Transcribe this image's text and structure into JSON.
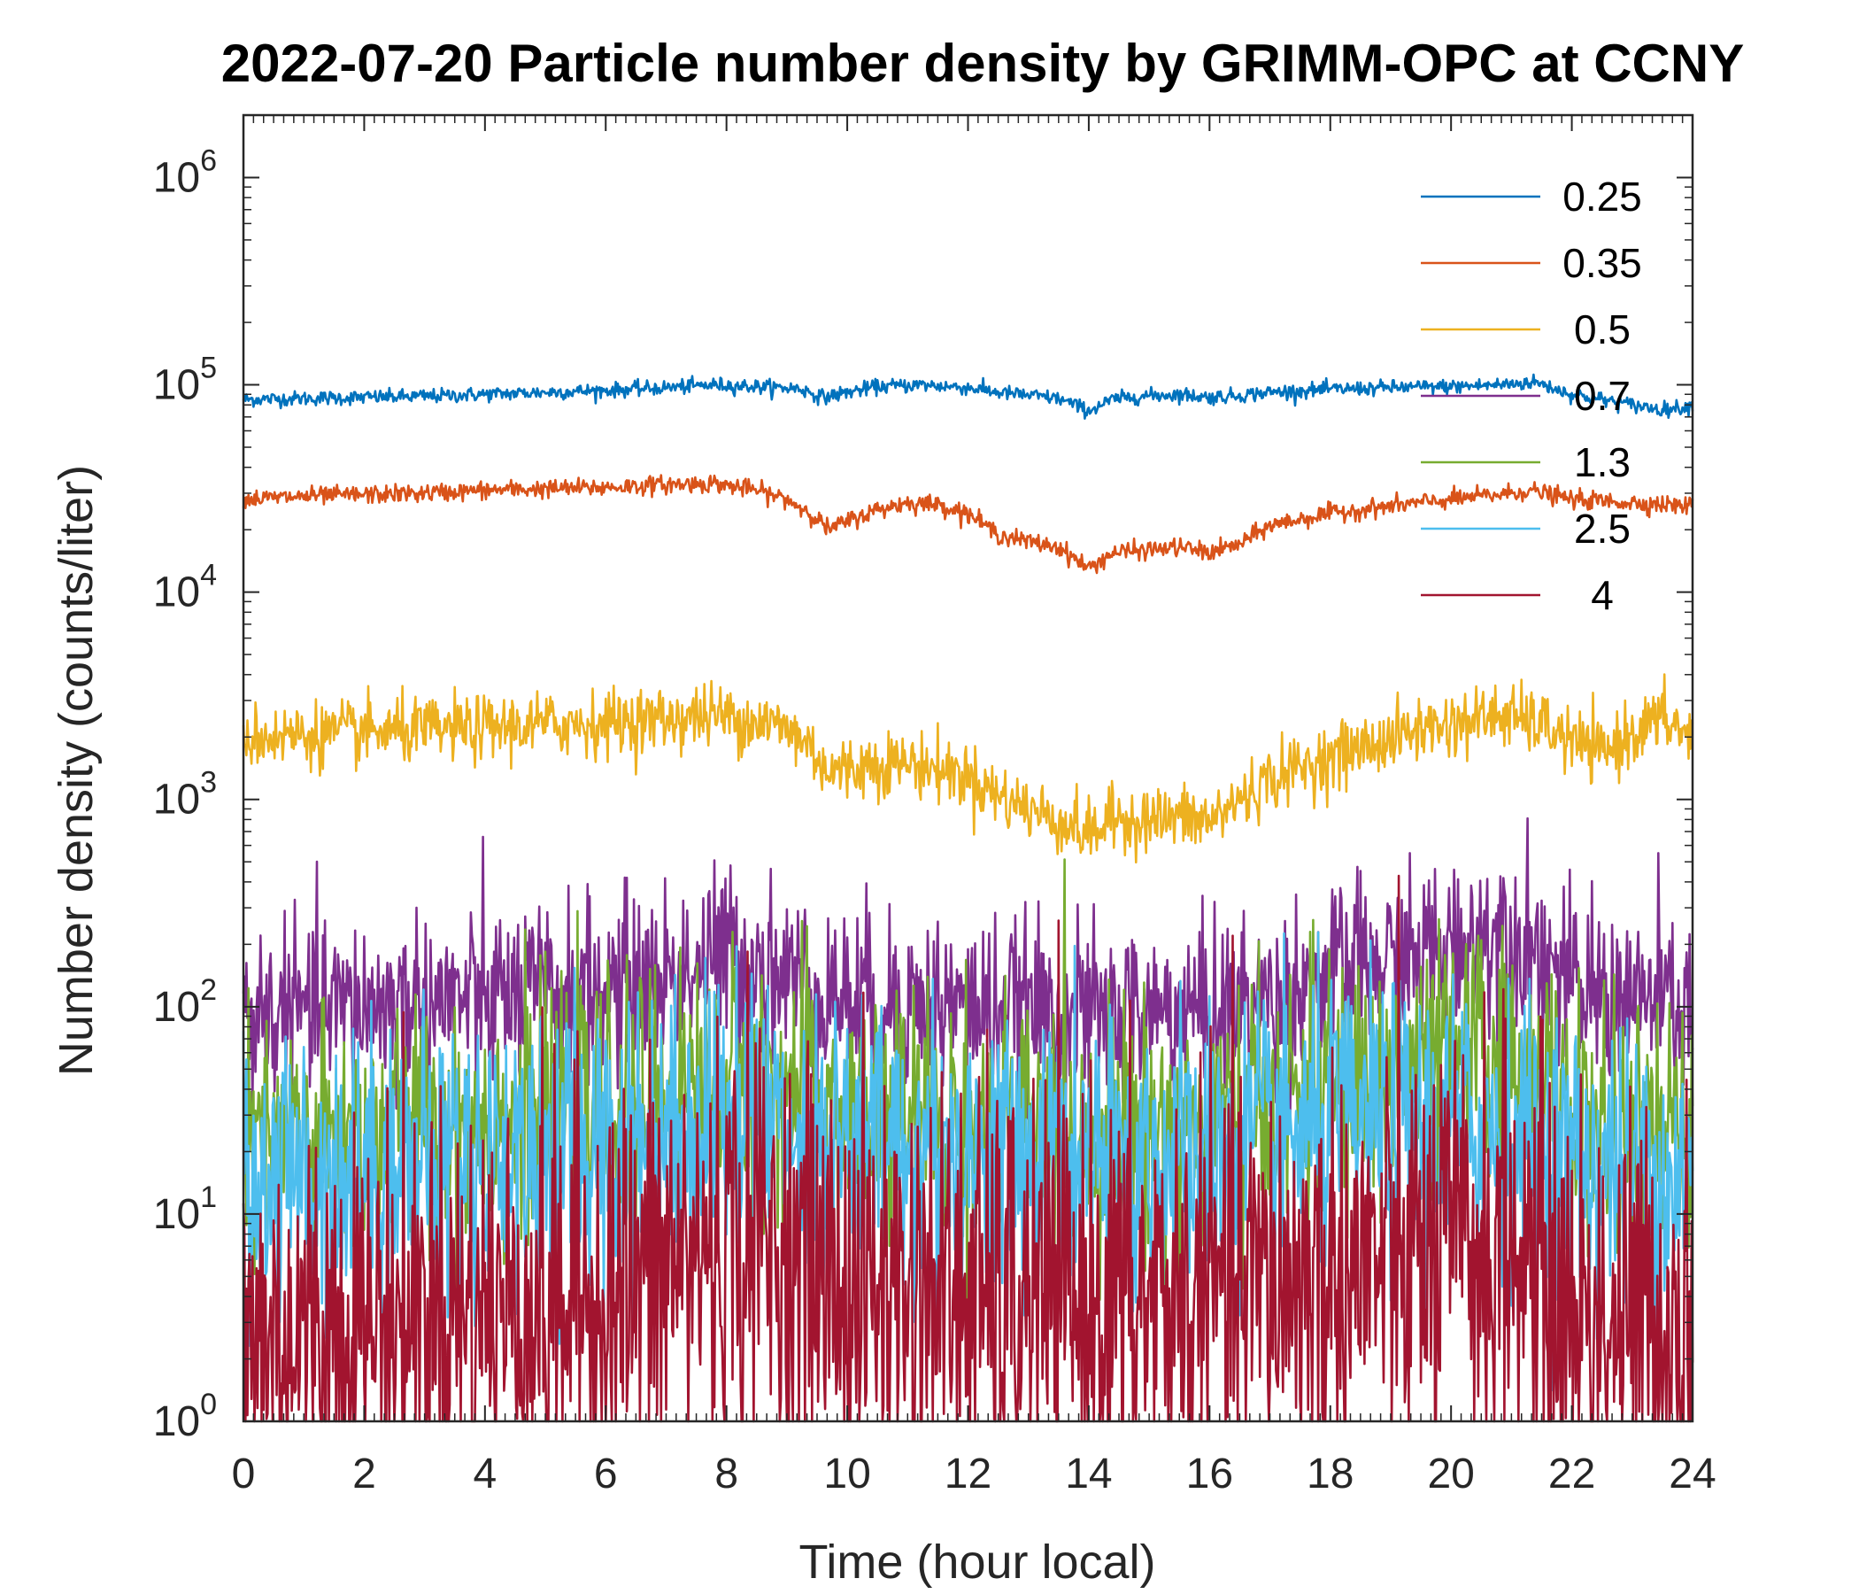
{
  "chart_data": {
    "type": "line",
    "title": "2022-07-20 Particle number density by GRIMM-OPC at CCNY",
    "xlabel": "Time (hour local)",
    "ylabel": "Number density (counts/liter)",
    "xlim": [
      0,
      24
    ],
    "ylim": [
      1,
      2000000
    ],
    "yscale": "log",
    "x_ticks": [
      "0",
      "2",
      "4",
      "6",
      "8",
      "10",
      "12",
      "14",
      "16",
      "18",
      "20",
      "22",
      "24"
    ],
    "y_ticks": [
      {
        "base": "10",
        "exp": "0",
        "value": 1
      },
      {
        "base": "10",
        "exp": "1",
        "value": 10
      },
      {
        "base": "10",
        "exp": "2",
        "value": 100
      },
      {
        "base": "10",
        "exp": "3",
        "value": 1000
      },
      {
        "base": "10",
        "exp": "4",
        "value": 10000
      },
      {
        "base": "10",
        "exp": "5",
        "value": 100000
      },
      {
        "base": "10",
        "exp": "6",
        "value": 1000000
      }
    ],
    "grid": false,
    "legend_position": "top-right",
    "series": [
      {
        "name": "0.25",
        "color": "#0072BD",
        "noise": 0.04,
        "x": [
          0,
          1,
          2,
          3,
          4,
          5,
          6,
          7,
          7.8,
          8.5,
          9.2,
          9.6,
          10.0,
          10.5,
          11.2,
          12.0,
          12.5,
          13.0,
          13.5,
          14.0,
          14.4,
          14.8,
          15.5,
          16.0,
          16.5,
          17.0,
          18.0,
          19.0,
          20.0,
          20.8,
          21.4,
          22.0,
          22.5,
          23.0,
          23.5,
          24.0
        ],
        "y": [
          85000,
          86000,
          87000,
          88000,
          90000,
          92000,
          94000,
          97000,
          100000,
          98000,
          96000,
          87000,
          92000,
          98000,
          100000,
          97000,
          92000,
          89000,
          86000,
          75000,
          85000,
          88000,
          90000,
          87000,
          89000,
          92000,
          95000,
          97000,
          98000,
          100000,
          103000,
          90000,
          85000,
          80000,
          76000,
          79000
        ]
      },
      {
        "name": "0.35",
        "color": "#D95319",
        "noise": 0.05,
        "x": [
          0,
          1,
          2,
          3,
          4,
          5,
          6,
          7,
          7.8,
          8.5,
          9.0,
          9.4,
          9.7,
          10.0,
          10.5,
          11.0,
          11.5,
          12.0,
          12.5,
          13.0,
          13.5,
          14.0,
          14.4,
          15.0,
          15.5,
          16.0,
          16.5,
          17.0,
          18.0,
          19.0,
          20.0,
          21.0,
          21.3,
          22.0,
          23.0,
          24.0
        ],
        "y": [
          28000,
          29000,
          29500,
          30000,
          31000,
          31500,
          32000,
          33000,
          33500,
          31000,
          28000,
          24000,
          20000,
          22000,
          25000,
          27000,
          26500,
          24000,
          19000,
          17500,
          16500,
          13000,
          15500,
          16000,
          16500,
          15500,
          17000,
          21000,
          24000,
          26000,
          28000,
          30000,
          31000,
          28000,
          27000,
          26000
        ]
      },
      {
        "name": "0.5",
        "color": "#EDB120",
        "noise": 0.18,
        "x": [
          0,
          1,
          2,
          3,
          4,
          5,
          6,
          7,
          7.8,
          8.5,
          9.0,
          9.4,
          9.7,
          10.0,
          10.5,
          11.0,
          11.5,
          12.0,
          12.5,
          13.0,
          13.5,
          14.0,
          14.5,
          15.0,
          15.5,
          16.0,
          16.5,
          17.0,
          18.0,
          19.0,
          19.5,
          20.0,
          20.8,
          21.5,
          22.0,
          22.5,
          23.0,
          23.5,
          24.0
        ],
        "y": [
          2000,
          2050,
          2100,
          2150,
          2200,
          2300,
          2350,
          2450,
          2550,
          2400,
          2200,
          1800,
          1350,
          1400,
          1500,
          1500,
          1400,
          1300,
          1050,
          900,
          800,
          680,
          820,
          800,
          820,
          780,
          1000,
          1250,
          1600,
          1950,
          2200,
          2300,
          2550,
          2300,
          1900,
          1650,
          2100,
          2450,
          2000
        ]
      },
      {
        "name": "0.7",
        "color": "#7E2F8E",
        "noise": 0.5,
        "x": [
          0,
          2,
          4,
          6,
          7,
          8,
          8.5,
          9,
          9.5,
          10,
          12,
          14,
          16,
          17,
          18,
          19,
          20,
          20.8,
          21.4,
          22,
          23,
          24
        ],
        "y": [
          90,
          100,
          110,
          120,
          140,
          180,
          160,
          140,
          120,
          110,
          100,
          90,
          95,
          110,
          140,
          160,
          190,
          240,
          200,
          120,
          110,
          100
        ]
      },
      {
        "name": "1.3",
        "color": "#77AC30",
        "noise": 0.7,
        "x": [
          0,
          2,
          4,
          6,
          8,
          9,
          10,
          12,
          14,
          16,
          17,
          18,
          19,
          20,
          21,
          21.5,
          22,
          23,
          24
        ],
        "y": [
          20,
          24,
          28,
          32,
          45,
          40,
          30,
          28,
          25,
          27,
          35,
          40,
          45,
          55,
          62,
          45,
          28,
          22,
          22
        ]
      },
      {
        "name": "2.5",
        "color": "#4DBEEE",
        "noise": 0.8,
        "x": [
          0,
          2,
          4,
          6,
          8,
          9,
          10,
          12,
          14,
          16,
          18,
          20,
          21,
          22,
          23,
          24
        ],
        "y": [
          14,
          17,
          19,
          22,
          30,
          27,
          22,
          20,
          17,
          20,
          25,
          27,
          25,
          18,
          16,
          15
        ]
      },
      {
        "name": "4",
        "color": "#A2142F",
        "noise": 1.2,
        "x": [
          0,
          2,
          4,
          6,
          7,
          8,
          8.5,
          9,
          10,
          12,
          14,
          16,
          18,
          20,
          21,
          22,
          23,
          24
        ],
        "y": [
          2.5,
          3,
          3.5,
          4,
          5.5,
          7.5,
          8,
          6,
          4.5,
          4,
          3.5,
          4,
          5,
          6.5,
          7,
          3.5,
          3,
          3
        ]
      }
    ]
  }
}
